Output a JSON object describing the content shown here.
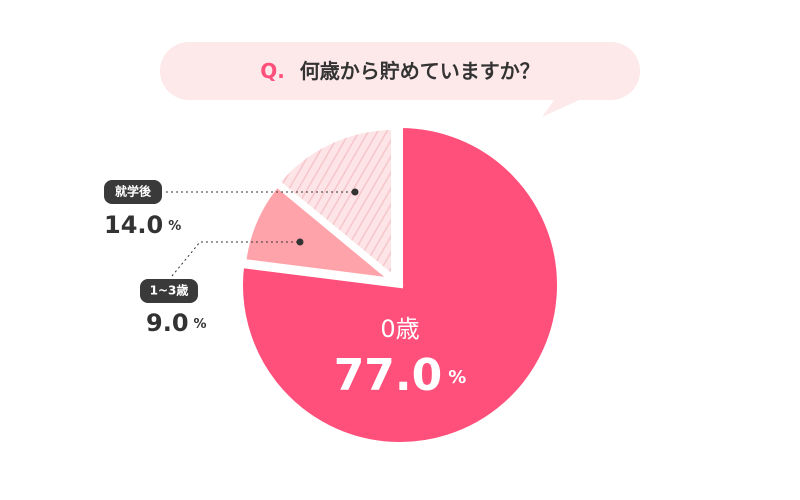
{
  "chart_data": {
    "type": "pie",
    "title_prefix": "Q.",
    "title": "何歳から貯めていますか？",
    "categories": [
      "0歳",
      "1~3歳",
      "就学後"
    ],
    "values": [
      77.0,
      9.0,
      14.0
    ],
    "value_labels": [
      "77.0",
      "9.0",
      "14.0"
    ],
    "unit": "%",
    "colors": [
      "#ff4f7b",
      "#ffa3ab",
      "#fde4e6"
    ]
  }
}
